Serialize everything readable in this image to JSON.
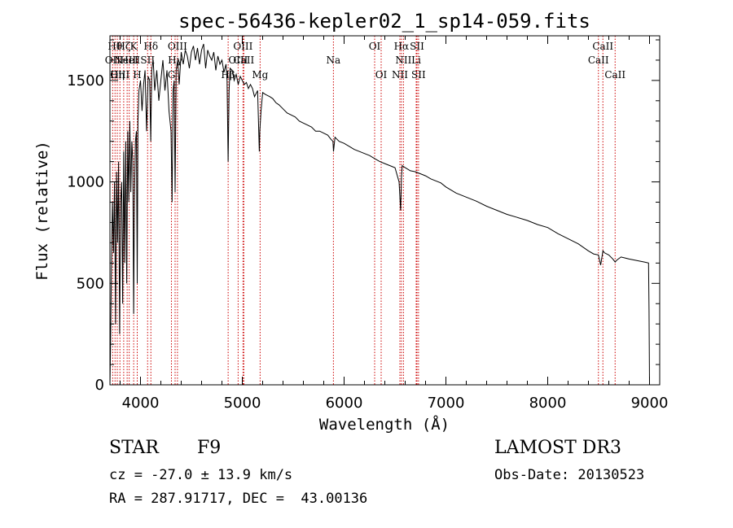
{
  "chart_data": {
    "type": "line",
    "title": "spec-56436-kepler02_1_sp14-059.fits",
    "xlabel": "Wavelength (Å)",
    "ylabel": "Flux (relative)",
    "xlim": [
      3700,
      9100
    ],
    "ylim": [
      0,
      1720
    ],
    "x_ticks": [
      4000,
      5000,
      6000,
      7000,
      8000,
      9000
    ],
    "y_ticks": [
      0,
      500,
      1000,
      1500
    ],
    "series": [
      {
        "name": "spectrum",
        "x": [
          3700,
          3705,
          3715,
          3725,
          3735,
          3745,
          3755,
          3765,
          3775,
          3785,
          3795,
          3805,
          3815,
          3825,
          3835,
          3845,
          3855,
          3865,
          3875,
          3885,
          3895,
          3905,
          3915,
          3925,
          3933,
          3940,
          3950,
          3960,
          3968,
          3975,
          3985,
          4000,
          4015,
          4030,
          4045,
          4060,
          4075,
          4090,
          4101,
          4110,
          4125,
          4140,
          4160,
          4180,
          4200,
          4220,
          4240,
          4260,
          4280,
          4300,
          4310,
          4320,
          4330,
          4340,
          4350,
          4365,
          4380,
          4400,
          4420,
          4440,
          4460,
          4480,
          4500,
          4520,
          4540,
          4560,
          4580,
          4600,
          4620,
          4640,
          4660,
          4680,
          4700,
          4720,
          4740,
          4760,
          4780,
          4800,
          4820,
          4840,
          4850,
          4861,
          4870,
          4880,
          4900,
          4920,
          4940,
          4960,
          4980,
          5000,
          5020,
          5040,
          5060,
          5080,
          5100,
          5120,
          5150,
          5167,
          5172,
          5184,
          5200,
          5230,
          5270,
          5300,
          5330,
          5360,
          5400,
          5440,
          5480,
          5520,
          5560,
          5600,
          5640,
          5680,
          5720,
          5760,
          5800,
          5840,
          5870,
          5890,
          5896,
          5910,
          5950,
          6000,
          6050,
          6100,
          6150,
          6200,
          6250,
          6300,
          6350,
          6400,
          6450,
          6500,
          6540,
          6555,
          6563,
          6570,
          6600,
          6650,
          6700,
          6750,
          6800,
          6850,
          6900,
          6950,
          7000,
          7100,
          7200,
          7300,
          7400,
          7500,
          7600,
          7700,
          7800,
          7900,
          8000,
          8100,
          8200,
          8300,
          8400,
          8450,
          8498,
          8520,
          8542,
          8560,
          8600,
          8640,
          8662,
          8680,
          8720,
          8760,
          8800,
          8850,
          8900,
          8950,
          8990,
          8995,
          9000
        ],
        "values": [
          0,
          150,
          600,
          900,
          650,
          1000,
          300,
          1050,
          700,
          1100,
          250,
          900,
          1000,
          400,
          1150,
          600,
          1200,
          500,
          1250,
          900,
          1300,
          950,
          1200,
          1100,
          350,
          900,
          1200,
          1250,
          500,
          1300,
          1450,
          1500,
          1350,
          1480,
          1550,
          1250,
          1520,
          1500,
          1200,
          1550,
          1600,
          1450,
          1550,
          1400,
          1500,
          1600,
          1450,
          1550,
          1350,
          1250,
          900,
          1450,
          1500,
          950,
          1550,
          1600,
          1480,
          1640,
          1580,
          1650,
          1620,
          1560,
          1640,
          1670,
          1600,
          1660,
          1580,
          1650,
          1680,
          1560,
          1650,
          1620,
          1600,
          1640,
          1550,
          1620,
          1580,
          1600,
          1540,
          1580,
          1500,
          1100,
          1450,
          1560,
          1550,
          1500,
          1530,
          1480,
          1520,
          1500,
          1480,
          1490,
          1460,
          1480,
          1460,
          1420,
          1450,
          1150,
          1250,
          1350,
          1440,
          1430,
          1420,
          1410,
          1390,
          1380,
          1360,
          1340,
          1330,
          1320,
          1300,
          1290,
          1280,
          1270,
          1250,
          1250,
          1240,
          1230,
          1210,
          1200,
          1150,
          1220,
          1200,
          1190,
          1175,
          1160,
          1150,
          1140,
          1130,
          1115,
          1100,
          1090,
          1080,
          1070,
          1000,
          860,
          1020,
          1080,
          1070,
          1055,
          1050,
          1040,
          1030,
          1015,
          1005,
          995,
          975,
          945,
          925,
          905,
          880,
          860,
          840,
          825,
          810,
          790,
          775,
          745,
          720,
          695,
          660,
          645,
          640,
          590,
          660,
          650,
          640,
          620,
          605,
          615,
          630,
          625,
          620,
          615,
          610,
          605,
          600,
          370,
          0
        ]
      }
    ],
    "lines": [
      {
        "wave": 3727,
        "label": "OII",
        "row": 2
      },
      {
        "wave": 3750,
        "label": "Hθ",
        "row": 1
      },
      {
        "wave": 3772,
        "label": "Hη",
        "row": 3
      },
      {
        "wave": 3798,
        "label": "OIII",
        "row": 3
      },
      {
        "wave": 3835,
        "label": "Hζ",
        "row": 1
      },
      {
        "wave": 3869,
        "label": "NeIII",
        "row": 2
      },
      {
        "wave": 3889,
        "label": "HeI",
        "row": 2
      },
      {
        "wave": 3933,
        "label": "K",
        "row": 1
      },
      {
        "wave": 3968,
        "label": "H",
        "row": 3
      },
      {
        "wave": 4070,
        "label": "SII",
        "row": 2
      },
      {
        "wave": 4102,
        "label": "Hδ",
        "row": 1
      },
      {
        "wave": 4304,
        "label": "G",
        "row": 3
      },
      {
        "wave": 4340,
        "label": "Hγ",
        "row": 2
      },
      {
        "wave": 4363,
        "label": "OIII",
        "row": 1
      },
      {
        "wave": 4861,
        "label": "Hβ",
        "row": 3
      },
      {
        "wave": 4959,
        "label": "OIII",
        "row": 2
      },
      {
        "wave": 5007,
        "label": "OIII",
        "row": 1
      },
      {
        "wave": 5015,
        "label": "CaII",
        "row": 2
      },
      {
        "wave": 5175,
        "label": "Mg",
        "row": 3
      },
      {
        "wave": 5895,
        "label": "Na",
        "row": 2
      },
      {
        "wave": 6300,
        "label": "OI",
        "row": 1
      },
      {
        "wave": 6364,
        "label": "OI",
        "row": 3
      },
      {
        "wave": 6548,
        "label": "NII",
        "row": 3
      },
      {
        "wave": 6563,
        "label": "Hα",
        "row": 1
      },
      {
        "wave": 6583,
        "label": "NII",
        "row": 2
      },
      {
        "wave": 6708,
        "label": "Li",
        "row": 2
      },
      {
        "wave": 6716,
        "label": "SII",
        "row": 1
      },
      {
        "wave": 6731,
        "label": "SII",
        "row": 3
      },
      {
        "wave": 8498,
        "label": "CaII",
        "row": 2
      },
      {
        "wave": 8542,
        "label": "CaII",
        "row": 1
      },
      {
        "wave": 8662,
        "label": "CaII",
        "row": 3
      }
    ]
  },
  "info": {
    "class": "STAR",
    "subclass": "F9",
    "survey": "LAMOST DR3",
    "cz": "cz = -27.0 ± 13.9 km/s",
    "obs_date": "Obs-Date: 20130523",
    "coords": "RA = 287.91717, DEC =  43.00136"
  }
}
